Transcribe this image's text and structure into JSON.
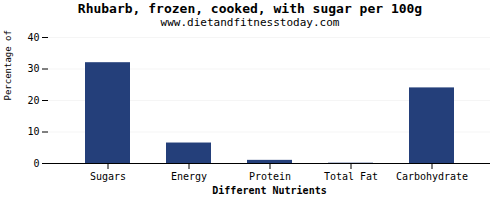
{
  "chart_data": {
    "type": "bar",
    "title": "Rhubarb, frozen, cooked, with sugar per 100g",
    "subtitle": "www.dietandfitnesstoday.com",
    "xlabel": "Different Nutrients",
    "ylabel": "Percentage of RDH (%)",
    "categories": [
      "Sugars",
      "Energy",
      "Protein",
      "Total Fat",
      "Carbohydrate"
    ],
    "values": [
      32.0,
      6.5,
      1.0,
      0.1,
      24.0
    ],
    "color": "#243f7a",
    "ylim": [
      0,
      40
    ],
    "yticks": [
      0,
      10,
      20,
      30,
      40
    ],
    "grid": true
  }
}
